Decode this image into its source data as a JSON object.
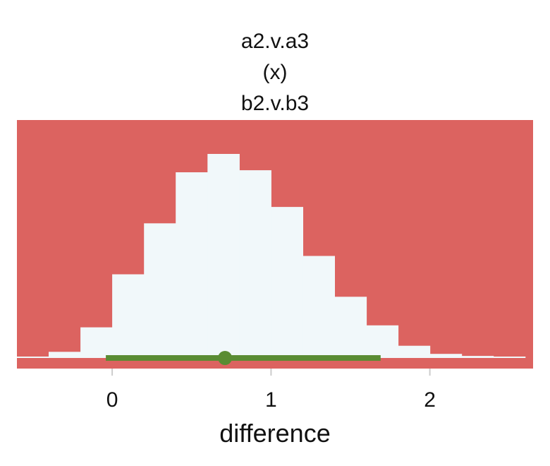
{
  "chart_data": {
    "type": "histogram",
    "title_lines": [
      "a2.v.a3",
      "(x)",
      "b2.v.b3"
    ],
    "xlabel": "difference",
    "ylabel": "",
    "xlim": [
      -0.6,
      2.65
    ],
    "ylim": [
      0,
      1.0
    ],
    "x_ticks": [
      0,
      1,
      2
    ],
    "x_tick_labels": [
      "0",
      "1",
      "2"
    ],
    "grid": false,
    "panel_color": "#dc6360",
    "bar_color": "#f1f8fa",
    "interval_color": "#5a8c33",
    "bins": [
      {
        "x0": -0.6,
        "x1": -0.4,
        "density": 0.0
      },
      {
        "x0": -0.4,
        "x1": -0.2,
        "density": 0.03
      },
      {
        "x0": -0.2,
        "x1": 0.0,
        "density": 0.15
      },
      {
        "x0": 0.0,
        "x1": 0.2,
        "density": 0.41
      },
      {
        "x0": 0.2,
        "x1": 0.4,
        "density": 0.66
      },
      {
        "x0": 0.4,
        "x1": 0.6,
        "density": 0.91
      },
      {
        "x0": 0.6,
        "x1": 0.8,
        "density": 1.0
      },
      {
        "x0": 0.8,
        "x1": 1.0,
        "density": 0.92
      },
      {
        "x0": 1.0,
        "x1": 1.2,
        "density": 0.74
      },
      {
        "x0": 1.2,
        "x1": 1.4,
        "density": 0.5
      },
      {
        "x0": 1.4,
        "x1": 1.6,
        "density": 0.3
      },
      {
        "x0": 1.6,
        "x1": 1.8,
        "density": 0.16
      },
      {
        "x0": 1.8,
        "x1": 2.0,
        "density": 0.06
      },
      {
        "x0": 2.0,
        "x1": 2.2,
        "density": 0.02
      },
      {
        "x0": 2.2,
        "x1": 2.4,
        "density": 0.01
      },
      {
        "x0": 2.4,
        "x1": 2.6,
        "density": 0.0
      }
    ],
    "point_estimate": 0.71,
    "interval": [
      -0.04,
      1.69
    ]
  }
}
